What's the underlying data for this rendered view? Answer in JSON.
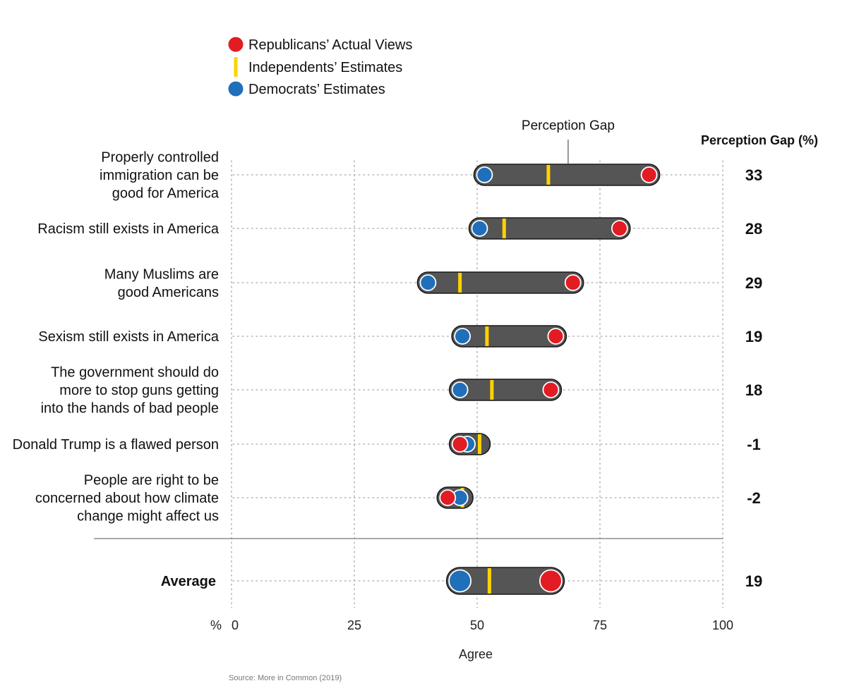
{
  "legend": [
    {
      "label": "Republicans’ Actual Views",
      "color": "#e31b23",
      "shape": "circle"
    },
    {
      "label": "Independents’ Estimates",
      "color": "#ffd200",
      "shape": "bar"
    },
    {
      "label": "Democrats’ Estimates",
      "color": "#1f6fba",
      "shape": "circle"
    }
  ],
  "annotation": "Perception Gap",
  "gap_header": "Perception Gap (%)",
  "chart_data": {
    "type": "dumbbell",
    "x_axis_prefix": "%",
    "xlabel": "Agree",
    "xlim": [
      0,
      100
    ],
    "xticks": [
      0,
      25,
      50,
      75,
      100
    ],
    "grid": true,
    "colors": {
      "republicans": "#e31b23",
      "independents": "#ffd200",
      "democrats": "#1f6fba",
      "gap_bar": "#555555"
    },
    "rows": [
      {
        "label": [
          "Properly controlled",
          "immigration can be",
          "good for America"
        ],
        "republicans": 85,
        "independents": 64.5,
        "democrats": 51.5,
        "gap": "33"
      },
      {
        "label": [
          "Racism still exists in America"
        ],
        "republicans": 79,
        "independents": 55.5,
        "democrats": 50.5,
        "gap": "28"
      },
      {
        "label": [
          "Many Muslims are",
          "good Americans"
        ],
        "republicans": 69.5,
        "independents": 46.5,
        "democrats": 40,
        "gap": "29"
      },
      {
        "label": [
          "Sexism still exists in America"
        ],
        "republicans": 66,
        "independents": 52,
        "democrats": 47,
        "gap": "19"
      },
      {
        "label": [
          "The government should do",
          "more to stop guns getting",
          "into the hands of bad people"
        ],
        "republicans": 65,
        "independents": 53,
        "democrats": 46.5,
        "gap": "18"
      },
      {
        "label": [
          "Donald Trump is a flawed person"
        ],
        "republicans": 46.5,
        "independents": 50.5,
        "democrats": 48,
        "gap": "-1"
      },
      {
        "label": [
          "People are right to be",
          "concerned about how climate",
          "change might affect us"
        ],
        "republicans": 44,
        "independents": 47,
        "democrats": 46.5,
        "gap": "-2"
      }
    ],
    "average": {
      "label": "Average",
      "republicans": 65,
      "independents": 52.5,
      "democrats": 46.5,
      "gap": "19"
    }
  },
  "source": "Source: More in Common (2019)"
}
